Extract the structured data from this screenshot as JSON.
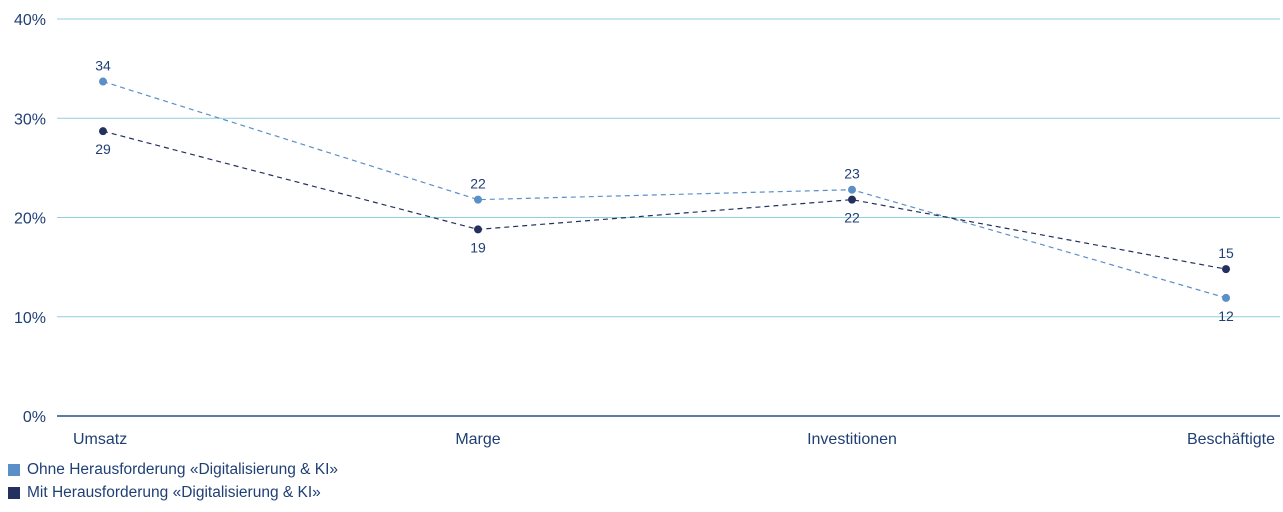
{
  "chart_data": {
    "type": "line",
    "title": "",
    "xlabel": "",
    "ylabel": "",
    "categories": [
      "Umsatz",
      "Marge",
      "Investitionen",
      "Beschäftigte"
    ],
    "y_ticks": [
      "0%",
      "10%",
      "20%",
      "30%",
      "40%"
    ],
    "ylim": [
      0,
      40
    ],
    "grid": true,
    "legend_position": "bottom-left",
    "series": [
      {
        "name": "Ohne Herausforderung «Digitalisierung & KI»",
        "values": [
          33.7,
          21.8,
          22.8,
          11.9
        ],
        "labels": [
          "34",
          "22",
          "23",
          "12"
        ],
        "label_position": [
          "above",
          "above",
          "above",
          "below"
        ],
        "color": "#5b8fc7"
      },
      {
        "name": "Mit Herausforderung «Digitalisierung & KI»",
        "values": [
          28.7,
          18.8,
          21.8,
          14.8
        ],
        "labels": [
          "29",
          "19",
          "22",
          "15"
        ],
        "label_position": [
          "below",
          "below",
          "below",
          "above"
        ],
        "color": "#24305e"
      }
    ]
  }
}
